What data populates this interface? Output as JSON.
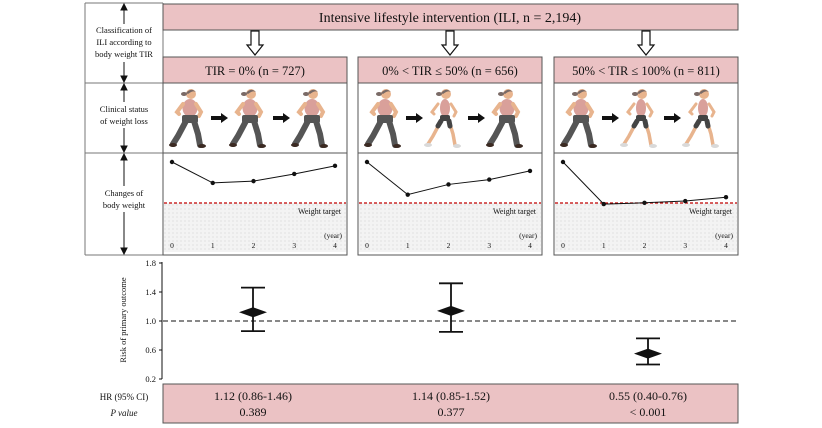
{
  "header": {
    "title": "Intensive lifestyle intervention (ILI, n = 2,194)"
  },
  "left_labels": {
    "classification": [
      "Classification of",
      "ILI according to",
      "body weight TIR"
    ],
    "clinical_status": [
      "Clinical status",
      "of weight loss"
    ],
    "changes": [
      "Changes of",
      "body weight"
    ]
  },
  "groups": [
    {
      "label": "TIR = 0% (n = 727)",
      "hr_text": "1.12 (0.86-1.46)",
      "p_text": "0.389",
      "hr": 1.12,
      "ci_low": 0.86,
      "ci_high": 1.46,
      "trajectory": [
        0.0,
        0.82,
        0.75,
        0.47,
        0.15
      ],
      "runners": [
        "heavy",
        "heavy",
        "heavy"
      ]
    },
    {
      "label": "0% < TIR ≤ 50% (n = 656)",
      "hr_text": "1.14 (0.85-1.52)",
      "p_text": "0.377",
      "hr": 1.14,
      "ci_low": 0.85,
      "ci_high": 1.52,
      "trajectory": [
        0.0,
        1.28,
        0.88,
        0.69,
        0.35
      ],
      "runners": [
        "heavy",
        "slim",
        "heavy"
      ]
    },
    {
      "label": "50% < TIR ≤ 100% (n = 811)",
      "hr_text": "0.55 (0.40-0.76)",
      "p_text": "< 0.001",
      "hr": 0.55,
      "ci_low": 0.4,
      "ci_high": 0.76,
      "trajectory": [
        0.0,
        1.65,
        1.6,
        1.53,
        1.38
      ],
      "runners": [
        "heavy",
        "slim",
        "slim"
      ]
    }
  ],
  "weight_chart": {
    "x_ticks": [
      "0",
      "1",
      "2",
      "3",
      "4"
    ],
    "unit_label": "(year)",
    "target_label": "Weight target"
  },
  "risk_chart": {
    "ylabel": "Risk of primary outcome",
    "y_ticks": [
      0.2,
      0.6,
      1.0,
      1.4,
      1.8
    ],
    "y_tick_labels": [
      "0.2",
      "0.6",
      "1.0",
      "1.4",
      "1.8"
    ],
    "ylim": [
      0.2,
      1.8
    ],
    "reference": 1.0
  },
  "bottom_labels": {
    "hr": "HR (95% CI)",
    "p": "P value"
  },
  "colors": {
    "pink": "#EBC2C4",
    "border": "#555555",
    "target": "#C00000",
    "shade": "#EEEEEE",
    "skin": "#E8B48E",
    "shirt": "#D9A09A",
    "pants_heavy": "#555555",
    "pants_slim": "#444444",
    "arrow": "#111111"
  }
}
